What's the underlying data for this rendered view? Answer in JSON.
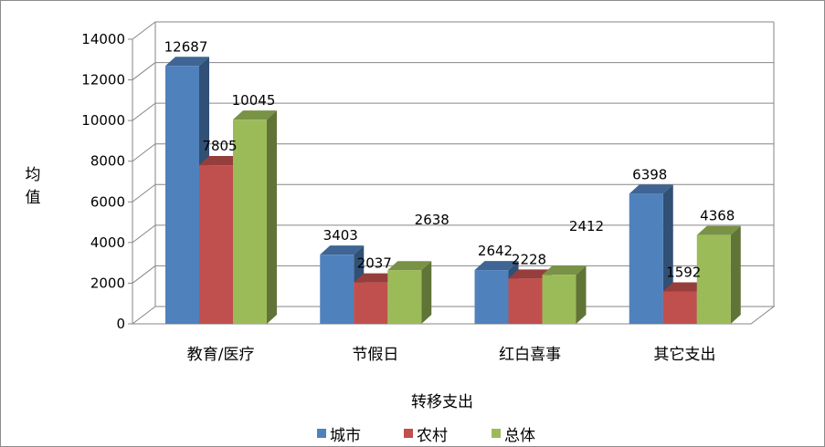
{
  "chart_data": {
    "type": "bar",
    "three_d": true,
    "categories": [
      "教育/医疗",
      "节假日",
      "红白喜事",
      "其它支出"
    ],
    "series": [
      {
        "name": "城市",
        "values": [
          12687,
          3403,
          2642,
          6398
        ],
        "color": "#4f81bd"
      },
      {
        "name": "农村",
        "values": [
          7805,
          2037,
          2228,
          1592
        ],
        "color": "#c0504d"
      },
      {
        "name": "总体",
        "values": [
          10045,
          2638,
          2412,
          4368
        ],
        "color": "#9bbb59"
      }
    ],
    "yticks": [
      "0",
      "2000",
      "4000",
      "6000",
      "8000",
      "10000",
      "12000",
      "14000"
    ],
    "ylim": [
      0,
      14000
    ],
    "xlabel": "转移支出",
    "ylabel": "均值",
    "grid": true,
    "legend_position": "bottom"
  }
}
